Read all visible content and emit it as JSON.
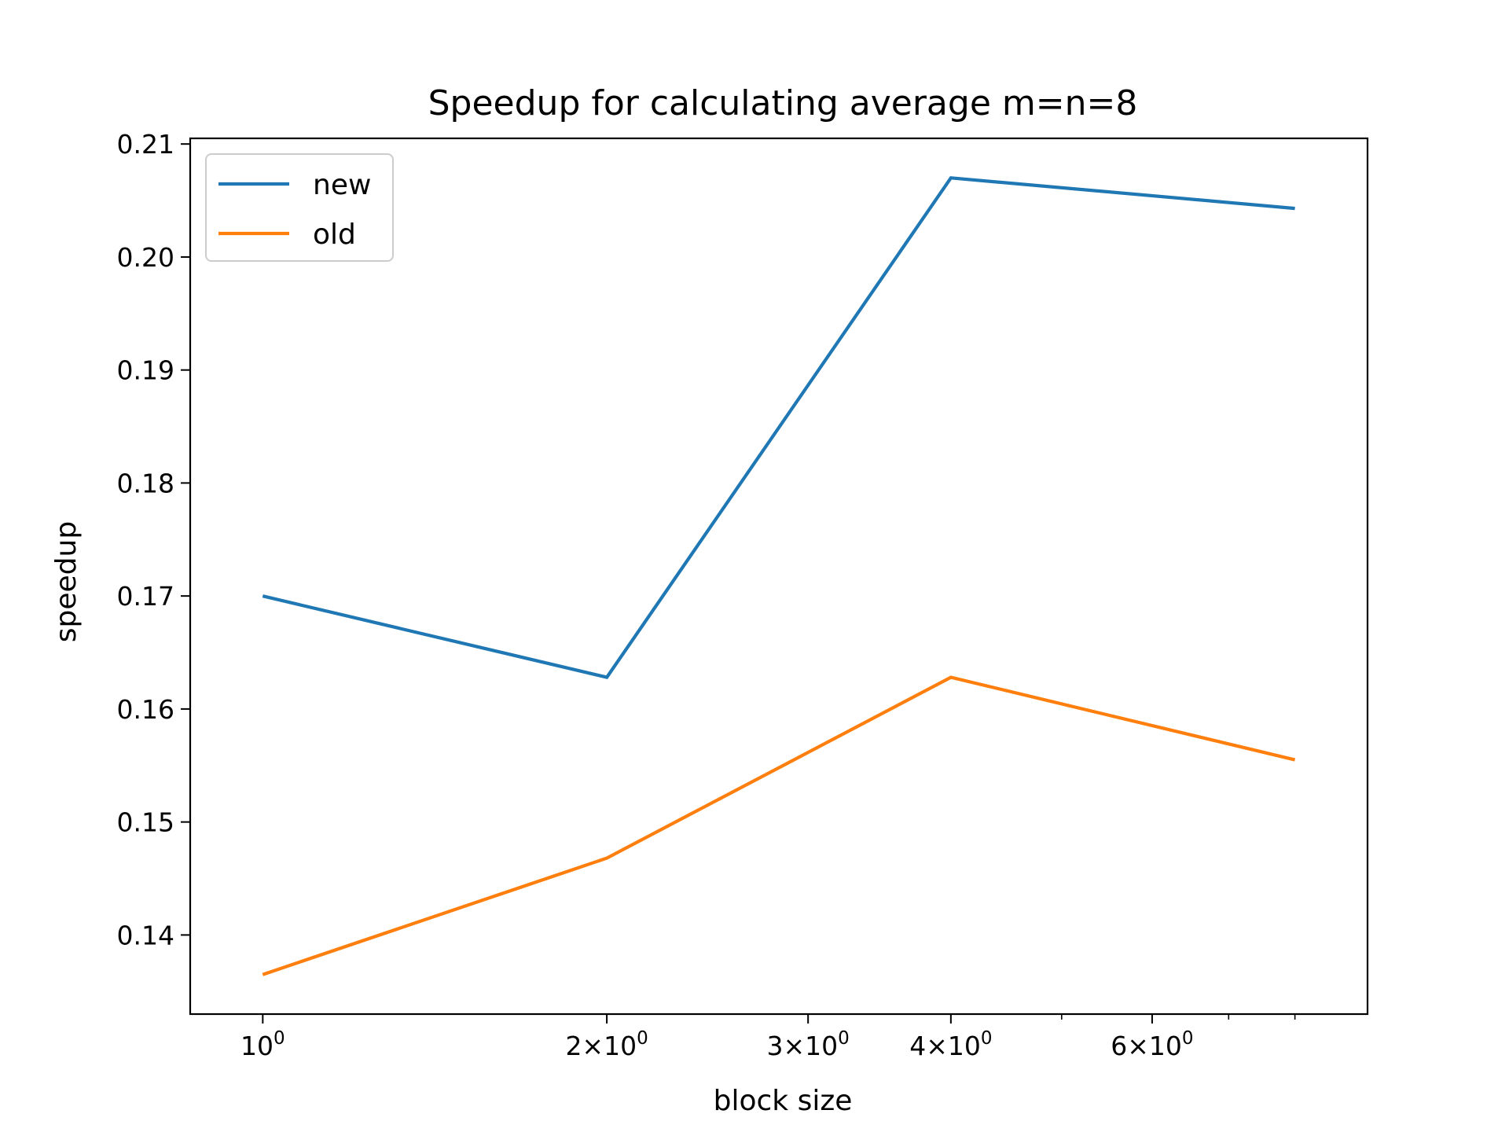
{
  "chart_data": {
    "type": "line",
    "title": "Speedup for calculating average m=n=8",
    "xlabel": "block size",
    "ylabel": "speedup",
    "xscale": "log",
    "x": [
      1,
      2,
      4,
      8
    ],
    "series": [
      {
        "name": "new",
        "color": "#1f77b4",
        "values": [
          0.17,
          0.1628,
          0.207,
          0.2043
        ]
      },
      {
        "name": "old",
        "color": "#ff7f0e",
        "values": [
          0.1365,
          0.1468,
          0.1628,
          0.1555
        ]
      }
    ],
    "xlim": [
      0.864,
      9.26
    ],
    "ylim": [
      0.133,
      0.2105
    ],
    "yticks": [
      {
        "value": 0.14,
        "label": "0.14"
      },
      {
        "value": 0.15,
        "label": "0.15"
      },
      {
        "value": 0.16,
        "label": "0.16"
      },
      {
        "value": 0.17,
        "label": "0.17"
      },
      {
        "value": 0.18,
        "label": "0.18"
      },
      {
        "value": 0.19,
        "label": "0.19"
      },
      {
        "value": 0.2,
        "label": "0.20"
      },
      {
        "value": 0.21,
        "label": "0.21"
      }
    ],
    "xticks_major": [
      {
        "value": 1,
        "base": "10",
        "exp": "0",
        "mant": ""
      },
      {
        "value": 2,
        "base": "10",
        "exp": "0",
        "mant": "2×"
      },
      {
        "value": 3,
        "base": "10",
        "exp": "0",
        "mant": "3×"
      },
      {
        "value": 4,
        "base": "10",
        "exp": "0",
        "mant": "4×"
      },
      {
        "value": 6,
        "base": "10",
        "exp": "0",
        "mant": "6×"
      }
    ],
    "xticks_minor": [
      5,
      7,
      8
    ],
    "legend": "upper-left",
    "grid": false
  }
}
